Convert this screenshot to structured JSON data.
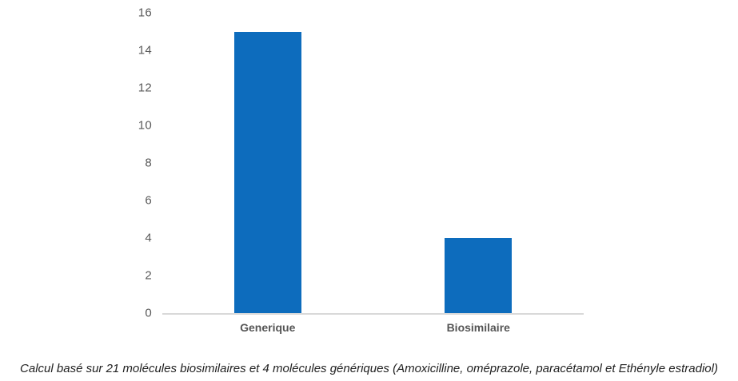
{
  "chart_data": {
    "type": "bar",
    "categories": [
      "Generique",
      "Biosimilaire"
    ],
    "values": [
      15,
      4
    ],
    "title": "",
    "xlabel": "",
    "ylabel": "",
    "ylim": [
      0,
      16
    ],
    "ytick_step": 2,
    "grid": false,
    "legend": "none",
    "bar_color": "#0d6cbd",
    "axis_line_color": "#d9d9d9",
    "tick_label_color": "#595959",
    "category_label_color": "#555555"
  },
  "caption": {
    "text": "Calcul basé sur 21 molécules biosimilaires et 4 molécules génériques (Amoxicilline, oméprazole, paracétamol et Ethényle estradiol)"
  }
}
